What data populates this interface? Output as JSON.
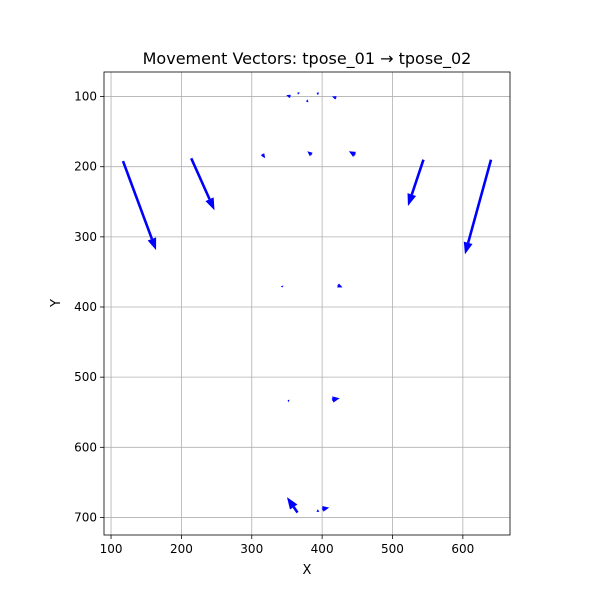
{
  "chart_data": {
    "type": "quiver",
    "title": "Movement Vectors: tpose_01 → tpose_02",
    "xlabel": "X",
    "ylabel": "Y",
    "xlim": [
      90,
      667
    ],
    "ylim": [
      725,
      65
    ],
    "y_inverted": true,
    "grid": true,
    "xticks": [
      100,
      200,
      300,
      400,
      500,
      600
    ],
    "yticks": [
      100,
      200,
      300,
      400,
      500,
      600,
      700
    ],
    "color": "#0000ff",
    "vectors": [
      {
        "x": 117,
        "y": 192,
        "dx": 47,
        "dy": 127
      },
      {
        "x": 214,
        "y": 188,
        "dx": 33,
        "dy": 74
      },
      {
        "x": 544,
        "y": 190,
        "dx": -22,
        "dy": 66
      },
      {
        "x": 640,
        "y": 190,
        "dx": -37,
        "dy": 135
      },
      {
        "x": 315,
        "y": 182,
        "dx": 4,
        "dy": 6
      },
      {
        "x": 385,
        "y": 183,
        "dx": -6,
        "dy": -5
      },
      {
        "x": 447,
        "y": 183,
        "dx": -9,
        "dy": -5
      },
      {
        "x": 355,
        "y": 100,
        "dx": -6,
        "dy": -2
      },
      {
        "x": 367,
        "y": 96,
        "dx": -2,
        "dy": -2
      },
      {
        "x": 380,
        "y": 106,
        "dx": -3,
        "dy": 1
      },
      {
        "x": 395,
        "y": 96,
        "dx": -3,
        "dy": -1
      },
      {
        "x": 420,
        "y": 102,
        "dx": -6,
        "dy": -2
      },
      {
        "x": 343,
        "y": 370,
        "dx": 1,
        "dy": 2
      },
      {
        "x": 422,
        "y": 369,
        "dx": 7,
        "dy": 3
      },
      {
        "x": 353,
        "y": 534,
        "dx": -2,
        "dy": -1
      },
      {
        "x": 414,
        "y": 532,
        "dx": 11,
        "dy": -2
      },
      {
        "x": 365,
        "y": 693,
        "dx": -15,
        "dy": -22
      },
      {
        "x": 395,
        "y": 690,
        "dx": -3,
        "dy": 2
      },
      {
        "x": 400,
        "y": 688,
        "dx": 10,
        "dy": -2
      }
    ]
  }
}
